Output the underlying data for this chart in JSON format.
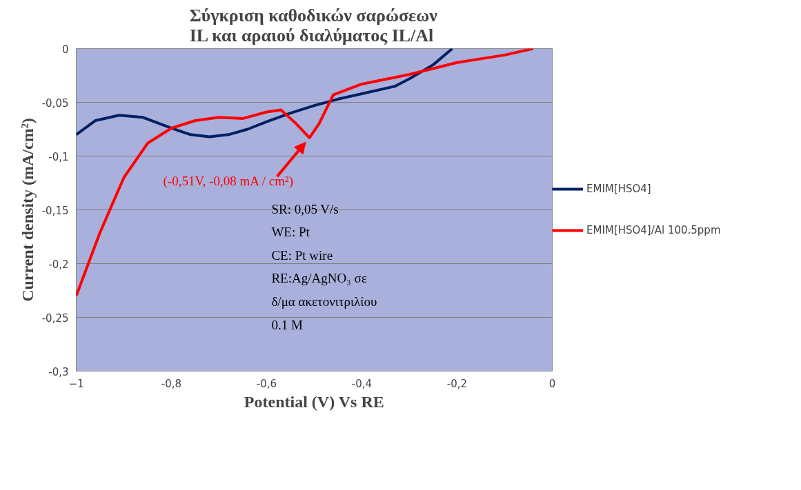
{
  "chart_data": {
    "type": "line",
    "title": "Σύγκριση καθοδικών σαρώσεων\nIL και αραιού διαλύματος  IL/Al",
    "xlabel": "Potential (V) Vs RE",
    "ylabel": "Current density (mA/cm²)",
    "xlim": [
      -1,
      0
    ],
    "ylim": [
      -0.3,
      0
    ],
    "xticks": [
      -1,
      {
        "value": -0.8,
        "label": "-0,8"
      },
      {
        "value": -0.6,
        "label": "-0,6"
      },
      {
        "value": -0.4,
        "label": "-0,4"
      },
      {
        "value": -0.2,
        "label": "-0,2"
      },
      0
    ],
    "yticks": [
      {
        "value": -0.3,
        "label": "-0,3"
      },
      {
        "value": -0.25,
        "label": "-0,25"
      },
      {
        "value": -0.2,
        "label": "-0,2"
      },
      {
        "value": -0.15,
        "label": "-0,15"
      },
      {
        "value": -0.1,
        "label": "-0,1"
      },
      {
        "value": -0.05,
        "label": "-0,05"
      },
      0
    ],
    "grid": "y",
    "legend": "right",
    "marker": "none",
    "line_style": "solid",
    "series": [
      {
        "name": "EMIM[HSO4]",
        "color": "#002060",
        "x": [
          -1,
          -0.96,
          -0.91,
          -0.86,
          -0.8,
          -0.76,
          -0.72,
          -0.68,
          -0.64,
          -0.6,
          -0.55,
          -0.5,
          -0.45,
          -0.4,
          -0.33,
          -0.3,
          -0.25,
          -0.21
        ],
        "values": [
          -0.08,
          -0.067,
          -0.062,
          -0.064,
          -0.074,
          -0.08,
          -0.082,
          -0.08,
          -0.075,
          -0.068,
          -0.06,
          -0.053,
          -0.047,
          -0.042,
          -0.035,
          -0.028,
          -0.015,
          0
        ]
      },
      {
        "name": "EMIM[HSO4]/Al 100.5ppm",
        "color": "#ff0000",
        "x": [
          -1,
          -0.95,
          -0.9,
          -0.85,
          -0.8,
          -0.75,
          -0.7,
          -0.65,
          -0.6,
          -0.57,
          -0.54,
          -0.51,
          -0.49,
          -0.46,
          -0.4,
          -0.3,
          -0.2,
          -0.1,
          -0.04
        ],
        "values": [
          -0.23,
          -0.171,
          -0.12,
          -0.088,
          -0.074,
          -0.067,
          -0.064,
          -0.065,
          -0.059,
          -0.057,
          -0.069,
          -0.083,
          -0.07,
          -0.043,
          -0.033,
          -0.024,
          -0.013,
          -0.006,
          0
        ]
      }
    ],
    "annotations": [
      {
        "text": "(-0,51V, -0,08 mA / cm²)",
        "x": -0.51,
        "y": -0.083
      },
      "SR: 0,05 V/s",
      "WE: Pt",
      "CE: Pt wire",
      "RE:Ag/AgNO₃ σε",
      "δ/μα ακετονιτριλίου",
      "0.1 M"
    ]
  }
}
